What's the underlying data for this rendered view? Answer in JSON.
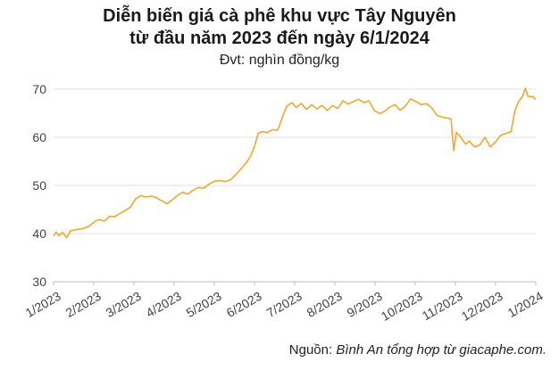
{
  "chart_data": {
    "type": "line",
    "title_line1": "Diễn biến giá cà phê khu vực Tây Nguyên",
    "title_line2": "từ đầu năm 2023 đến ngày 6/1/2024",
    "unit": "Đvt: nghìn đồng/kg",
    "source_prefix": "Nguồn: ",
    "source_text": "Bình An tổng hợp từ giacaphe.com.",
    "line_color": "#f0a830",
    "grid": true,
    "ylim": [
      30,
      70
    ],
    "yticks": [
      "30",
      "40",
      "50",
      "60",
      "70"
    ],
    "xticks": [
      "1/2023",
      "2/2023",
      "3/2023",
      "4/2023",
      "5/2023",
      "6/2023",
      "7/2023",
      "8/2023",
      "9/2023",
      "10/2023",
      "11/2023",
      "12/2023",
      "1/2024"
    ],
    "x_range": [
      "2023-01-01",
      "2024-01-06"
    ],
    "points": [
      [
        "2023-01-01",
        39.5
      ],
      [
        "2023-01-03",
        40.3
      ],
      [
        "2023-01-05",
        39.6
      ],
      [
        "2023-01-08",
        40.2
      ],
      [
        "2023-01-11",
        39.2
      ],
      [
        "2023-01-14",
        40.6
      ],
      [
        "2023-01-18",
        40.8
      ],
      [
        "2023-01-23",
        41.0
      ],
      [
        "2023-01-28",
        41.5
      ],
      [
        "2023-02-02",
        42.6
      ],
      [
        "2023-02-05",
        42.9
      ],
      [
        "2023-02-09",
        42.6
      ],
      [
        "2023-02-13",
        43.6
      ],
      [
        "2023-02-17",
        43.5
      ],
      [
        "2023-02-21",
        44.2
      ],
      [
        "2023-02-25",
        44.8
      ],
      [
        "2023-03-01",
        45.5
      ],
      [
        "2023-03-05",
        47.2
      ],
      [
        "2023-03-09",
        47.9
      ],
      [
        "2023-03-13",
        47.6
      ],
      [
        "2023-03-17",
        47.8
      ],
      [
        "2023-03-21",
        47.4
      ],
      [
        "2023-03-25",
        46.8
      ],
      [
        "2023-03-29",
        46.2
      ],
      [
        "2023-04-02",
        47.0
      ],
      [
        "2023-04-06",
        47.9
      ],
      [
        "2023-04-10",
        48.6
      ],
      [
        "2023-04-14",
        48.2
      ],
      [
        "2023-04-18",
        49.0
      ],
      [
        "2023-04-22",
        49.6
      ],
      [
        "2023-04-26",
        49.4
      ],
      [
        "2023-05-01",
        50.4
      ],
      [
        "2023-05-05",
        50.9
      ],
      [
        "2023-05-09",
        51.0
      ],
      [
        "2023-05-13",
        50.8
      ],
      [
        "2023-05-17",
        51.2
      ],
      [
        "2023-05-21",
        52.3
      ],
      [
        "2023-05-25",
        53.5
      ],
      [
        "2023-05-29",
        54.8
      ],
      [
        "2023-06-01",
        56.0
      ],
      [
        "2023-06-04",
        58.0
      ],
      [
        "2023-06-07",
        60.8
      ],
      [
        "2023-06-10",
        61.2
      ],
      [
        "2023-06-14",
        61.0
      ],
      [
        "2023-06-18",
        61.6
      ],
      [
        "2023-06-22",
        61.5
      ],
      [
        "2023-06-26",
        64.5
      ],
      [
        "2023-06-29",
        66.5
      ],
      [
        "2023-07-03",
        67.2
      ],
      [
        "2023-07-06",
        66.2
      ],
      [
        "2023-07-10",
        67.0
      ],
      [
        "2023-07-14",
        65.8
      ],
      [
        "2023-07-18",
        66.8
      ],
      [
        "2023-07-22",
        65.9
      ],
      [
        "2023-07-26",
        66.6
      ],
      [
        "2023-07-30",
        65.6
      ],
      [
        "2023-08-03",
        66.6
      ],
      [
        "2023-08-07",
        66.0
      ],
      [
        "2023-08-11",
        67.6
      ],
      [
        "2023-08-15",
        66.9
      ],
      [
        "2023-08-19",
        67.4
      ],
      [
        "2023-08-23",
        67.9
      ],
      [
        "2023-08-27",
        67.2
      ],
      [
        "2023-08-31",
        67.6
      ],
      [
        "2023-09-04",
        65.6
      ],
      [
        "2023-09-08",
        64.9
      ],
      [
        "2023-09-12",
        65.4
      ],
      [
        "2023-09-16",
        66.3
      ],
      [
        "2023-09-20",
        66.8
      ],
      [
        "2023-09-24",
        65.6
      ],
      [
        "2023-09-28",
        66.5
      ],
      [
        "2023-10-02",
        68.0
      ],
      [
        "2023-10-06",
        67.4
      ],
      [
        "2023-10-10",
        66.8
      ],
      [
        "2023-10-14",
        67.0
      ],
      [
        "2023-10-18",
        66.2
      ],
      [
        "2023-10-22",
        64.6
      ],
      [
        "2023-10-26",
        64.2
      ],
      [
        "2023-10-30",
        64.0
      ],
      [
        "2023-11-02",
        63.8
      ],
      [
        "2023-11-04",
        57.2
      ],
      [
        "2023-11-06",
        61.0
      ],
      [
        "2023-11-09",
        60.2
      ],
      [
        "2023-11-13",
        58.6
      ],
      [
        "2023-11-16",
        59.2
      ],
      [
        "2023-11-20",
        58.0
      ],
      [
        "2023-11-24",
        58.4
      ],
      [
        "2023-11-28",
        60.0
      ],
      [
        "2023-12-02",
        58.0
      ],
      [
        "2023-12-06",
        59.0
      ],
      [
        "2023-12-10",
        60.4
      ],
      [
        "2023-12-14",
        60.8
      ],
      [
        "2023-12-18",
        61.2
      ],
      [
        "2023-12-21",
        65.6
      ],
      [
        "2023-12-24",
        67.5
      ],
      [
        "2023-12-27",
        68.6
      ],
      [
        "2023-12-29",
        70.2
      ],
      [
        "2023-12-31",
        68.5
      ],
      [
        "2024-01-04",
        68.4
      ],
      [
        "2024-01-06",
        67.8
      ]
    ]
  }
}
